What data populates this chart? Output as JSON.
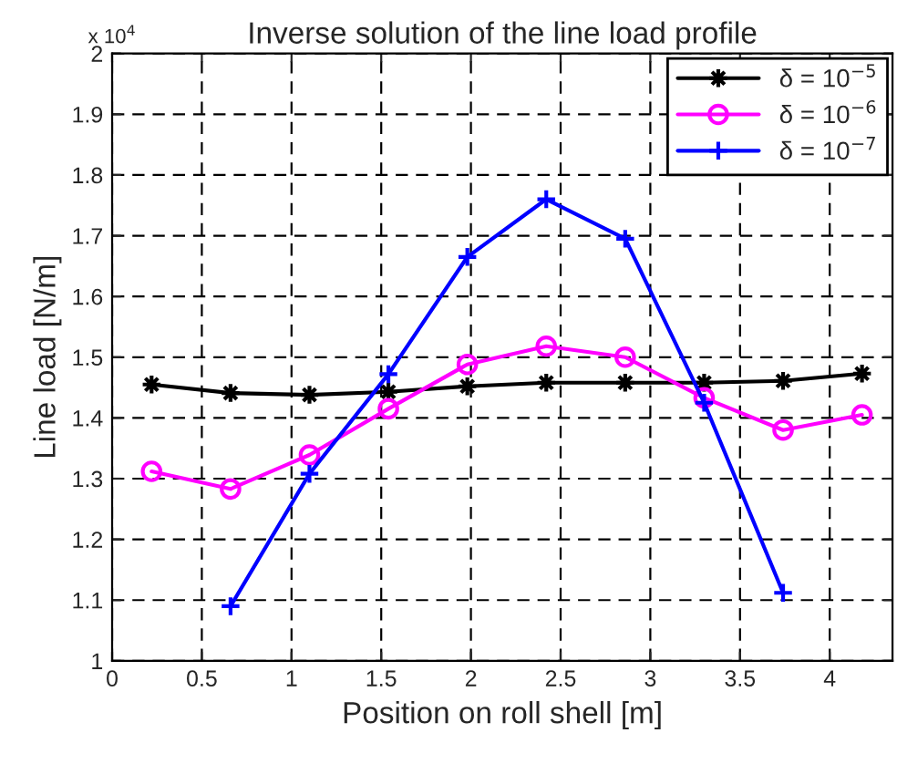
{
  "chart_data": {
    "type": "line",
    "title": "Inverse solution of the line load profile",
    "xlabel": "Position on roll shell [m]",
    "ylabel": "Line load [N/m]",
    "annotations": [
      "x 10$^{4}$"
    ],
    "x": [
      0.22,
      0.66,
      1.1,
      1.54,
      1.98,
      2.42,
      2.86,
      3.3,
      3.74,
      4.18
    ],
    "series": [
      {
        "name": "δ = 10$^{−5}$",
        "color": "#000000",
        "marker": "star",
        "values": [
          1.455,
          1.441,
          1.438,
          1.443,
          1.452,
          1.458,
          1.458,
          1.458,
          1.461,
          1.473
        ]
      },
      {
        "name": "δ = 10$^{−6}$",
        "color": "#ff00ff",
        "marker": "circle",
        "values": [
          1.312,
          1.283,
          1.339,
          1.415,
          1.488,
          1.518,
          1.5,
          1.433,
          1.38,
          1.405
        ]
      },
      {
        "name": "δ = 10$^{−7}$",
        "color": "#0000ff",
        "marker": "cross",
        "values": [
          null,
          1.09,
          1.308,
          1.472,
          1.665,
          1.76,
          1.695,
          1.425,
          1.112,
          null
        ]
      }
    ],
    "xlim": [
      0,
      4.35
    ],
    "xticks": [
      0,
      0.5,
      1,
      1.5,
      2,
      2.5,
      3,
      3.5,
      4
    ],
    "ylim": [
      1,
      2
    ],
    "yticks": [
      1,
      1.1,
      1.2,
      1.3,
      1.4,
      1.5,
      1.6,
      1.7,
      1.8,
      1.9,
      2
    ],
    "grid": true,
    "legend": "top right",
    "line_style": "solid"
  }
}
